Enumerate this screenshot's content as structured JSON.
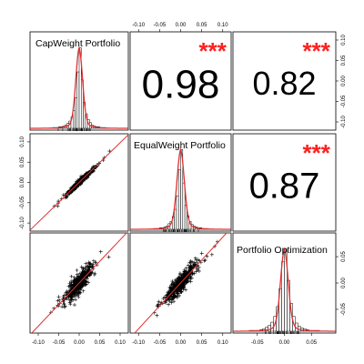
{
  "chart_data": {
    "type": "pairs",
    "variables": [
      "CapWeight Portfolio",
      "EqualWeight Portfolio",
      "Portfolio Optimization"
    ],
    "axis_range": [
      -0.12,
      0.12
    ],
    "ticks": [
      -0.1,
      -0.05,
      0.0,
      0.05,
      0.1
    ],
    "tick_labels": [
      "-0.10",
      "-0.05",
      "0.00",
      "0.05",
      "0.10"
    ],
    "third_axis_range": [
      -0.095,
      0.095
    ],
    "third_ticks": [
      -0.05,
      0.0,
      0.05
    ],
    "third_tick_labels": [
      "-0.05",
      "0.00",
      "0.05"
    ],
    "correlations": [
      {
        "x": "CapWeight Portfolio",
        "y": "EqualWeight Portfolio",
        "value": 0.98,
        "label": "0.98",
        "stars": "***"
      },
      {
        "x": "CapWeight Portfolio",
        "y": "Portfolio Optimization",
        "value": 0.82,
        "label": "0.82",
        "stars": "***"
      },
      {
        "x": "EqualWeight Portfolio",
        "y": "Portfolio Optimization",
        "value": 0.87,
        "label": "0.87",
        "stars": "***"
      }
    ],
    "histogram_bin_width": 0.005,
    "histograms": [
      {
        "variable": "CapWeight Portfolio",
        "sd": 0.015,
        "relative_counts": [
          1,
          1,
          1,
          2,
          2,
          3,
          4,
          6,
          9,
          14,
          22,
          38,
          70,
          100,
          60,
          32,
          18,
          11,
          7,
          4,
          3,
          2,
          2,
          1,
          1,
          1
        ]
      },
      {
        "variable": "EqualWeight Portfolio",
        "sd": 0.016,
        "relative_counts": [
          1,
          1,
          1,
          2,
          2,
          3,
          4,
          7,
          10,
          16,
          25,
          42,
          75,
          100,
          58,
          30,
          17,
          10,
          6,
          4,
          3,
          2,
          2,
          1,
          1,
          1
        ]
      },
      {
        "variable": "Portfolio Optimization",
        "sd": 0.013,
        "relative_counts": [
          1,
          1,
          1,
          1,
          2,
          3,
          5,
          7,
          11,
          18,
          30,
          52,
          85,
          100,
          62,
          34,
          18,
          10,
          6,
          4,
          3,
          2,
          1,
          1,
          1,
          1
        ]
      }
    ],
    "scatter_panels": [
      {
        "x": "CapWeight Portfolio",
        "y": "EqualWeight Portfolio",
        "n_points": 520,
        "sd_x": 0.015,
        "correlation": 0.98
      },
      {
        "x": "CapWeight Portfolio",
        "y": "Portfolio Optimization",
        "n_points": 520,
        "sd_x": 0.015,
        "correlation": 0.82
      },
      {
        "x": "EqualWeight Portfolio",
        "y": "Portfolio Optimization",
        "n_points": 520,
        "sd_x": 0.016,
        "correlation": 0.87
      }
    ],
    "colors": {
      "points": "#000000",
      "fit_line": "#e03030",
      "stars": "#ff2020",
      "text": "#000000",
      "hist_bar": "#ffffff"
    }
  }
}
